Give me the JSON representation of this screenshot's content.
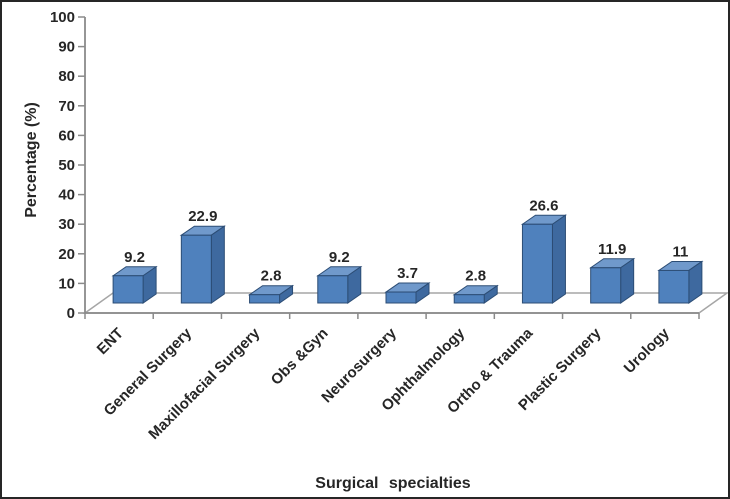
{
  "chart_data": {
    "type": "bar",
    "style": "3d-column",
    "title": "",
    "xlabel": "Surgical specialties",
    "ylabel": "Percentage (%)",
    "categories": [
      "ENT",
      "General Surgery",
      "Maxillofacial Surgery",
      "Obs &Gyn",
      "Neurosurgery",
      "Ophthalmology",
      "Ortho & Trauma",
      "Plastic Surgery",
      "Urology"
    ],
    "values": [
      9.2,
      22.9,
      2.8,
      9.2,
      3.7,
      2.8,
      26.6,
      11.9,
      11
    ],
    "data_labels": [
      "9.2",
      "22.9",
      "2.8",
      "9.2",
      "3.7",
      "2.8",
      "26.6",
      "11.9",
      "11"
    ],
    "ylim": [
      0,
      100
    ],
    "ytick_interval": 10,
    "grid": false,
    "legend": "none",
    "colors": {
      "bar_front": "#4f81bd",
      "bar_top": "#7099cb",
      "bar_side": "#3e699f",
      "bar_outline": "#2c4d75",
      "axis_line": "#8a8a8a",
      "floor_line": "#a6a6a6",
      "text": "#262626",
      "background": "#ffffff",
      "frame_border": "#262626"
    }
  }
}
